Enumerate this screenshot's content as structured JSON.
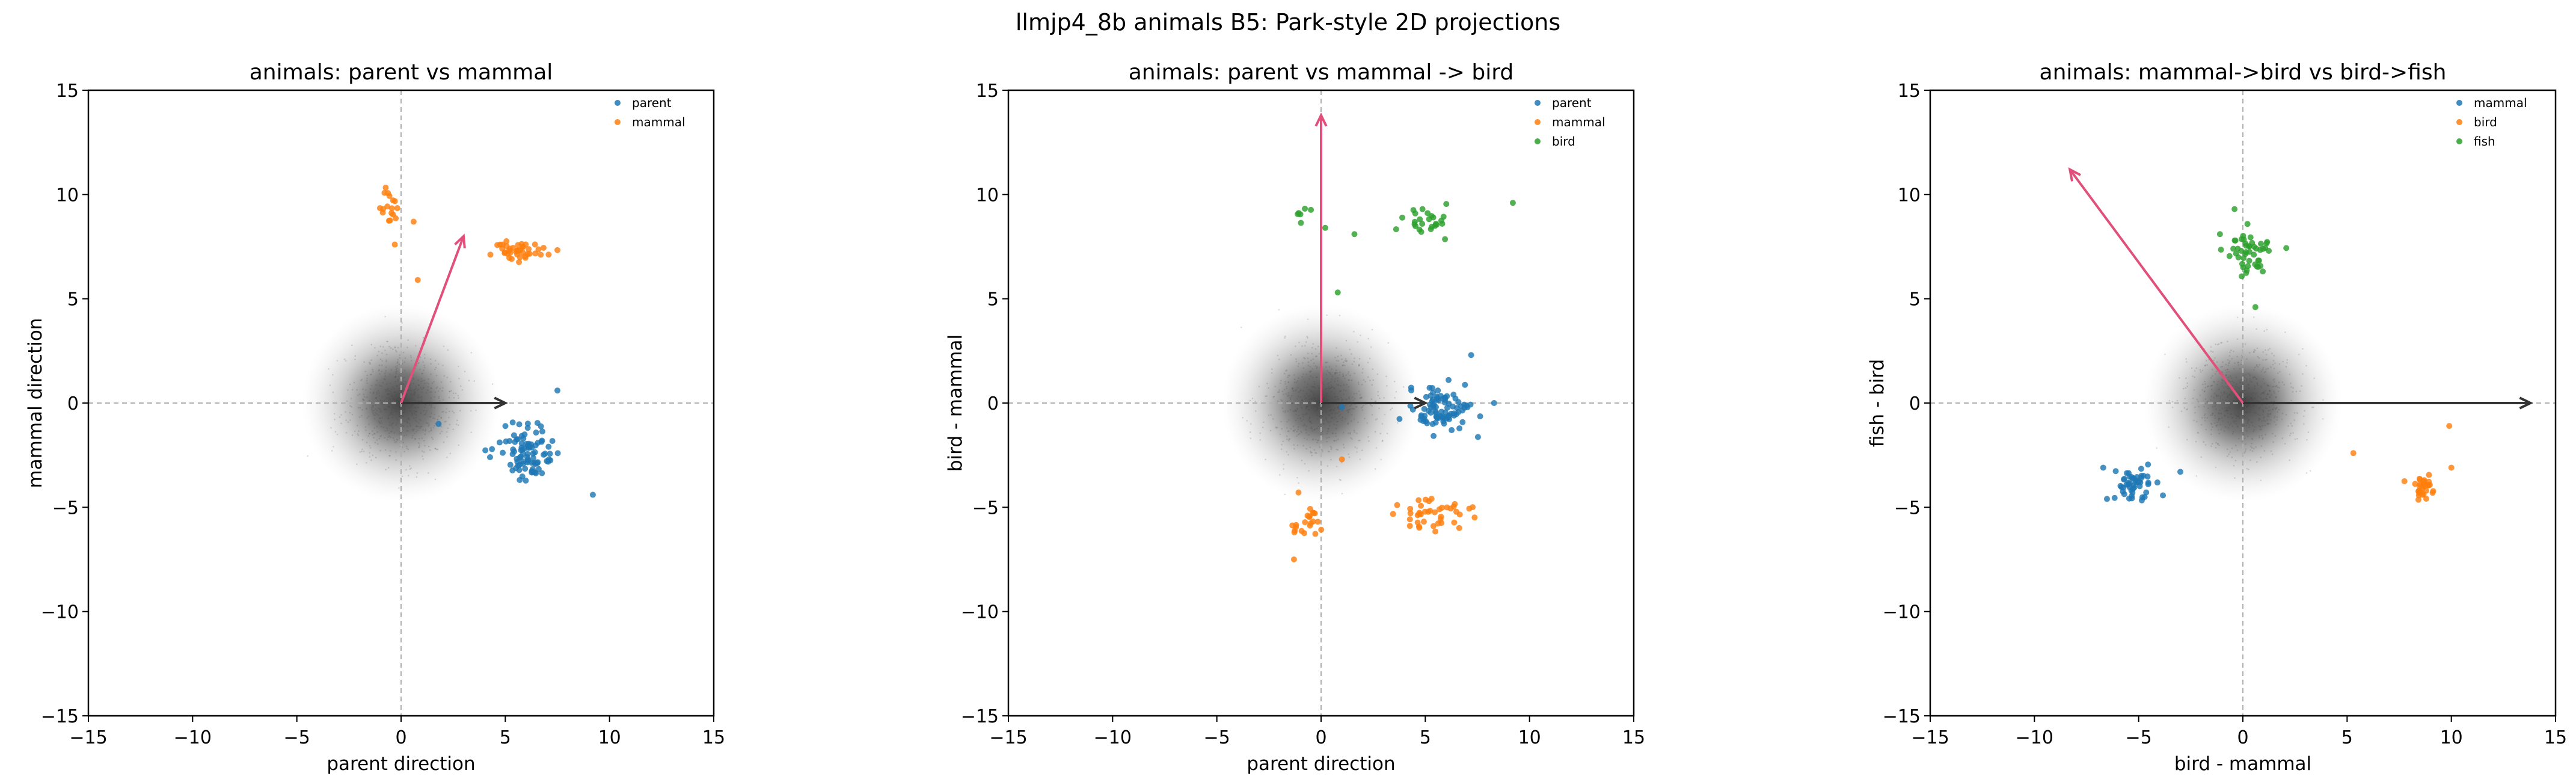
{
  "figure": {
    "suptitle": "llmjp4_8b animals B5: Park-style 2D projections"
  },
  "chart_data": [
    {
      "type": "scatter",
      "title": "animals: parent vs mammal",
      "xlabel": "parent direction",
      "ylabel": "mammal direction",
      "xlim": [
        -15,
        15
      ],
      "ylim": [
        -15,
        15
      ],
      "xticks": [
        "−15",
        "−10",
        "−5",
        "0",
        "5",
        "10",
        "15"
      ],
      "yticks": [
        "−15",
        "−10",
        "−5",
        "0",
        "5",
        "10",
        "15"
      ],
      "grid": false,
      "zero_lines": "dashed",
      "background_cloud": {
        "center": [
          0,
          0
        ],
        "radius": 2.5,
        "color": "#444444"
      },
      "legend": {
        "placement": "top-right"
      },
      "series": [
        {
          "name": "parent",
          "color": "#1f77b4",
          "clusters": [
            {
              "center": [
                6.0,
                -2.3
              ],
              "spread": [
                1.2,
                1.1
              ],
              "n": 90
            }
          ],
          "outliers": [
            [
              9.2,
              -4.4
            ],
            [
              7.5,
              0.6
            ],
            [
              1.8,
              -1.0
            ]
          ]
        },
        {
          "name": "mammal",
          "color": "#ff7f0e",
          "clusters": [
            {
              "center": [
                5.6,
                7.3
              ],
              "spread": [
                1.3,
                0.45
              ],
              "n": 42
            },
            {
              "center": [
                -0.5,
                9.2
              ],
              "spread": [
                0.7,
                0.75
              ],
              "n": 18
            }
          ],
          "outliers": [
            [
              0.8,
              5.9
            ],
            [
              -0.3,
              7.6
            ]
          ]
        }
      ],
      "arrows": [
        {
          "from": [
            0,
            0
          ],
          "to": [
            5.0,
            0.0
          ],
          "color": "#333333"
        },
        {
          "from": [
            0,
            0
          ],
          "to": [
            3.0,
            8.0
          ],
          "color": "#e0507a"
        }
      ]
    },
    {
      "type": "scatter",
      "title": "animals: parent vs mammal -> bird",
      "xlabel": "parent direction",
      "ylabel": "bird - mammal",
      "xlim": [
        -15,
        15
      ],
      "ylim": [
        -15,
        15
      ],
      "xticks": [
        "−15",
        "−10",
        "−5",
        "0",
        "5",
        "10",
        "15"
      ],
      "yticks": [
        "−15",
        "−10",
        "−5",
        "0",
        "5",
        "10",
        "15"
      ],
      "grid": false,
      "zero_lines": "dashed",
      "background_cloud": {
        "center": [
          0,
          0
        ],
        "radius": 2.5,
        "color": "#444444"
      },
      "legend": {
        "placement": "top-right"
      },
      "series": [
        {
          "name": "parent",
          "color": "#1f77b4",
          "clusters": [
            {
              "center": [
                5.7,
                -0.2
              ],
              "spread": [
                1.3,
                1.0
              ],
              "n": 90
            }
          ],
          "outliers": [
            [
              8.3,
              0.0
            ],
            [
              7.2,
              2.3
            ],
            [
              1.0,
              -0.2
            ]
          ]
        },
        {
          "name": "mammal",
          "color": "#ff7f0e",
          "clusters": [
            {
              "center": [
                5.3,
                -5.4
              ],
              "spread": [
                1.3,
                0.7
              ],
              "n": 42
            },
            {
              "center": [
                -0.6,
                -5.6
              ],
              "spread": [
                0.8,
                0.9
              ],
              "n": 22
            }
          ],
          "outliers": [
            [
              1.0,
              -2.7
            ],
            [
              -1.3,
              -7.5
            ]
          ]
        },
        {
          "name": "bird",
          "color": "#2ca02c",
          "clusters": [
            {
              "center": [
                5.0,
                8.7
              ],
              "spread": [
                1.1,
                0.7
              ],
              "n": 26
            },
            {
              "center": [
                -1.0,
                9.2
              ],
              "spread": [
                0.6,
                0.5
              ],
              "n": 6
            }
          ],
          "outliers": [
            [
              9.2,
              9.6
            ],
            [
              0.8,
              5.3
            ],
            [
              1.6,
              8.1
            ],
            [
              0.2,
              8.4
            ]
          ]
        }
      ],
      "arrows": [
        {
          "from": [
            0,
            0
          ],
          "to": [
            5.0,
            0.0
          ],
          "color": "#333333"
        },
        {
          "from": [
            0,
            0
          ],
          "to": [
            0.0,
            13.8
          ],
          "color": "#e0507a"
        }
      ]
    },
    {
      "type": "scatter",
      "title": "animals: mammal->bird vs bird->fish",
      "xlabel": "bird - mammal",
      "ylabel": "fish - bird",
      "xlim": [
        -15,
        15
      ],
      "ylim": [
        -15,
        15
      ],
      "xticks": [
        "−15",
        "−10",
        "−5",
        "0",
        "5",
        "10",
        "15"
      ],
      "yticks": [
        "−15",
        "−10",
        "−5",
        "0",
        "5",
        "10",
        "15"
      ],
      "grid": false,
      "zero_lines": "dashed",
      "background_cloud": {
        "center": [
          0,
          0
        ],
        "radius": 2.5,
        "color": "#444444"
      },
      "legend": {
        "placement": "top-right"
      },
      "series": [
        {
          "name": "mammal",
          "color": "#1f77b4",
          "clusters": [
            {
              "center": [
                -5.2,
                -3.9
              ],
              "spread": [
                0.8,
                0.75
              ],
              "n": 50
            }
          ],
          "outliers": [
            [
              -3.0,
              -3.3
            ],
            [
              -6.7,
              -3.1
            ]
          ]
        },
        {
          "name": "bird",
          "color": "#ff7f0e",
          "clusters": [
            {
              "center": [
                8.7,
                -4.0
              ],
              "spread": [
                0.6,
                0.55
              ],
              "n": 32
            }
          ],
          "outliers": [
            [
              5.3,
              -2.4
            ],
            [
              10.0,
              -3.1
            ],
            [
              9.9,
              -1.1
            ]
          ]
        },
        {
          "name": "fish",
          "color": "#2ca02c",
          "clusters": [
            {
              "center": [
                0.2,
                7.3
              ],
              "spread": [
                0.85,
                0.9
              ],
              "n": 48
            }
          ],
          "outliers": [
            [
              -1.1,
              8.1
            ],
            [
              0.6,
              4.6
            ],
            [
              -0.4,
              9.3
            ]
          ]
        }
      ],
      "arrows": [
        {
          "from": [
            0,
            0
          ],
          "to": [
            13.8,
            0.0
          ],
          "color": "#333333"
        },
        {
          "from": [
            0,
            0
          ],
          "to": [
            -8.3,
            11.2
          ],
          "color": "#e0507a"
        }
      ]
    }
  ]
}
